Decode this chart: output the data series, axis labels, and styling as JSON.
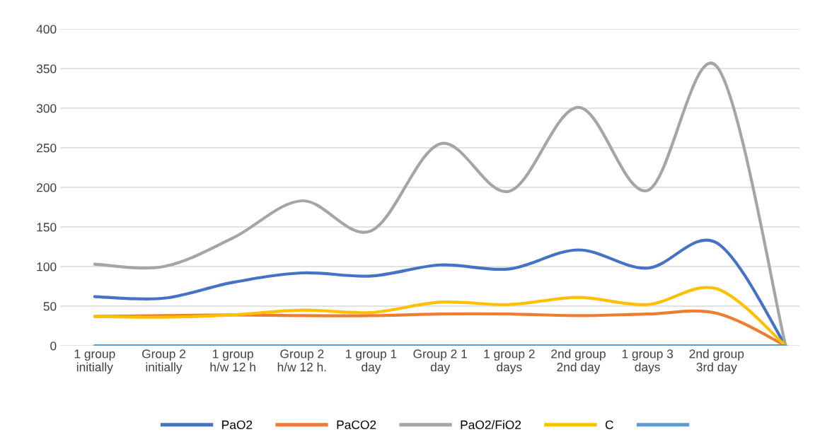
{
  "chart_data": {
    "type": "line",
    "categories": [
      "1 group\ninitially",
      "Group 2\ninitially",
      "1 group\nh/w 12 h",
      "Group 2\nh/w 12 h.",
      "1 group 1\nday",
      "Group 2 1\nday",
      "1 group 2\ndays",
      "2nd group\n2nd day",
      "1 group 3\ndays",
      "2nd group\n3rd day",
      null
    ],
    "series": [
      {
        "name": "PaO2",
        "color": "#4472c4",
        "values": [
          62,
          60,
          80,
          92,
          88,
          102,
          97,
          121,
          98,
          130,
          0
        ]
      },
      {
        "name": "PaCO2",
        "color": "#ed7d31",
        "values": [
          37,
          38,
          39,
          38,
          38,
          40,
          40,
          38,
          40,
          41,
          0
        ]
      },
      {
        "name": "PaO2/FiO2",
        "color": "#a5a5a5",
        "values": [
          103,
          100,
          136,
          183,
          145,
          255,
          195,
          301,
          196,
          353,
          0
        ]
      },
      {
        "name": "C",
        "color": "#ffc000",
        "values": [
          37,
          36,
          39,
          45,
          42,
          55,
          52,
          61,
          52,
          72,
          0
        ]
      },
      {
        "color": "#5b9bd5",
        "values": [
          0,
          0,
          0,
          0,
          0,
          0,
          0,
          0,
          0,
          0,
          0
        ]
      }
    ],
    "ylim": [
      0,
      400
    ],
    "yticks": [
      0,
      50,
      100,
      150,
      200,
      250,
      300,
      350,
      400
    ],
    "grid": "y",
    "legend": "bottom",
    "marker": "none",
    "line_style": "solid"
  }
}
